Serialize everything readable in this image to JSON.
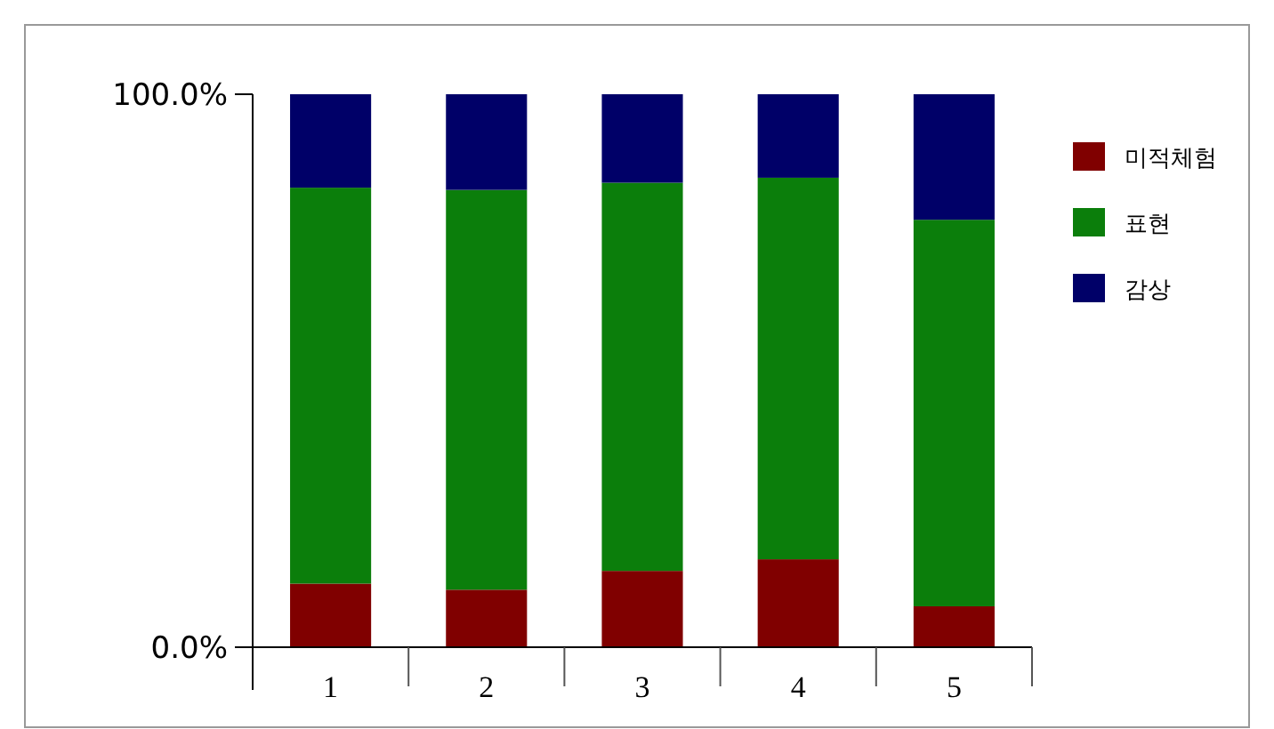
{
  "chart_data": {
    "type": "bar",
    "stacked": true,
    "categories": [
      "1",
      "2",
      "3",
      "4",
      "5"
    ],
    "series": [
      {
        "name": "미적체험",
        "color": "#800000",
        "values": [
          11.5,
          10.4,
          13.8,
          15.9,
          7.4
        ]
      },
      {
        "name": "표현",
        "color": "#0b7e0b",
        "values": [
          71.6,
          72.3,
          70.2,
          69.0,
          69.9
        ]
      },
      {
        "name": "감상",
        "color": "#000068",
        "values": [
          16.9,
          17.3,
          16.0,
          15.1,
          22.7
        ]
      }
    ],
    "ylim": [
      0,
      100
    ],
    "yticks": [
      {
        "value": 0,
        "label": "0.0%"
      },
      {
        "value": 100,
        "label": "100.0%"
      }
    ],
    "grid": false,
    "legend": "right"
  }
}
